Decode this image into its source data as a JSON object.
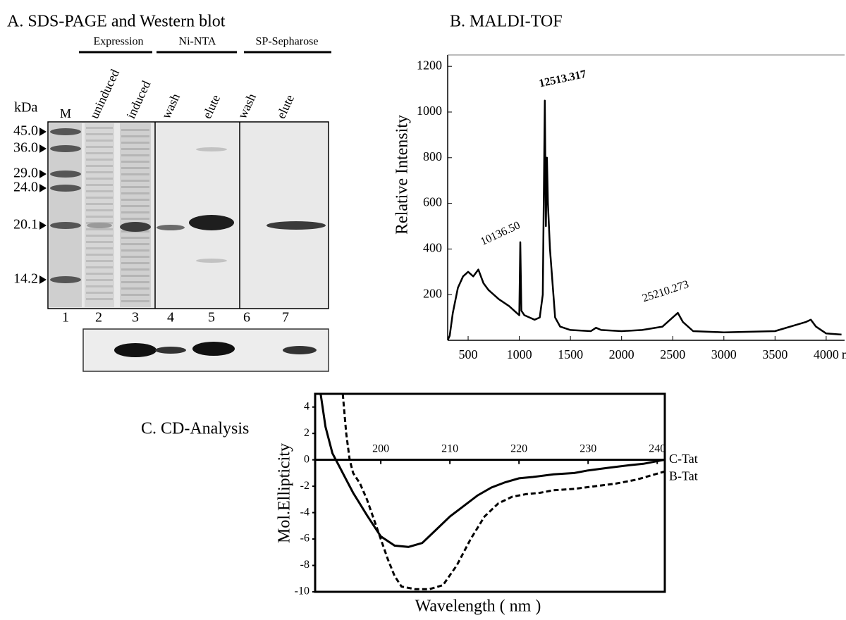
{
  "panel_a": {
    "title": "A. SDS-PAGE and Western blot",
    "groups": [
      "Expression",
      "Ni-NTA",
      "SP-Sepharose"
    ],
    "kda_label": "kDa",
    "lanes": [
      "M",
      "uninduced",
      "induced",
      "wash",
      "elute",
      "wash",
      "elute"
    ],
    "lane_numbers": [
      "1",
      "2",
      "3",
      "4",
      "5",
      "6",
      "7"
    ],
    "markers": [
      "45.0",
      "36.0",
      "29.0",
      "24.0",
      "20.1",
      "14.2"
    ]
  },
  "chart_data": [
    {
      "type": "line",
      "title": "B. MALDI-TOF",
      "ylabel": "Relative Intensity",
      "xlabel": "m/s",
      "color": "#000000",
      "x": [
        300,
        320,
        350,
        400,
        450,
        500,
        550,
        600,
        650,
        700,
        800,
        900,
        950,
        1000,
        1010,
        1020,
        1050,
        1100,
        1150,
        1200,
        1230,
        1250,
        1260,
        1270,
        1280,
        1300,
        1350,
        1400,
        1500,
        1700,
        1750,
        1800,
        2000,
        2200,
        2400,
        2500,
        2550,
        2600,
        2700,
        3000,
        3500,
        3800,
        3850,
        3900,
        4000,
        4150
      ],
      "values": [
        0,
        20,
        120,
        230,
        280,
        300,
        280,
        310,
        250,
        220,
        180,
        150,
        130,
        110,
        430,
        130,
        110,
        100,
        90,
        100,
        200,
        1050,
        500,
        800,
        600,
        400,
        100,
        60,
        45,
        40,
        55,
        45,
        40,
        45,
        60,
        100,
        120,
        80,
        40,
        35,
        40,
        80,
        90,
        60,
        30,
        25
      ],
      "annotations": [
        "12513.317",
        "10136.50",
        "25210.273"
      ],
      "xlim": [
        300,
        4180
      ],
      "ylim": [
        0,
        1250
      ],
      "xticks": [
        500,
        1000,
        1500,
        2000,
        2500,
        3000,
        3500,
        4000
      ],
      "yticks": [
        200,
        400,
        600,
        800,
        1000,
        1200
      ]
    },
    {
      "type": "line",
      "title": "C. CD-Analysis",
      "ylabel": "Mol.Ellipticity",
      "xlabel": "Wavelength ( nm )",
      "series": [
        {
          "name": "C-Tat",
          "color": "#000000",
          "line_style": "solid",
          "x": [
            191.3,
            192,
            193,
            194,
            195,
            196,
            198,
            200,
            202,
            204,
            206,
            208,
            210,
            212,
            214,
            216,
            218,
            220,
            222,
            225,
            228,
            230,
            233,
            236,
            238,
            241
          ],
          "values": [
            5,
            2.5,
            0.5,
            -0.5,
            -1.5,
            -2.5,
            -4.2,
            -5.8,
            -6.5,
            -6.6,
            -6.3,
            -5.3,
            -4.3,
            -3.5,
            -2.7,
            -2.1,
            -1.7,
            -1.4,
            -1.3,
            -1.1,
            -1.0,
            -0.8,
            -0.6,
            -0.4,
            -0.3,
            0
          ]
        },
        {
          "name": "B-Tat",
          "color": "#000000",
          "line_style": "dashed",
          "x": [
            194.5,
            195,
            195.5,
            196,
            197,
            198,
            199,
            200,
            201,
            202,
            203,
            205,
            207,
            209,
            211,
            213,
            215,
            217,
            219,
            221,
            223,
            225,
            228,
            231,
            234,
            237,
            239,
            241
          ],
          "values": [
            5,
            2,
            0,
            -1,
            -1.8,
            -3.0,
            -4.5,
            -6.0,
            -7.5,
            -8.8,
            -9.6,
            -9.8,
            -9.8,
            -9.5,
            -8.0,
            -6.0,
            -4.3,
            -3.3,
            -2.8,
            -2.6,
            -2.5,
            -2.3,
            -2.2,
            -2.0,
            -1.8,
            -1.5,
            -1.2,
            -0.9
          ]
        }
      ],
      "xlim": [
        190.5,
        241.1
      ],
      "ylim": [
        -10,
        5
      ],
      "xticks": [
        200,
        210,
        220,
        230,
        240
      ],
      "yticks": [
        4,
        2,
        0,
        -2,
        -4,
        -6,
        -8,
        -10
      ]
    }
  ]
}
